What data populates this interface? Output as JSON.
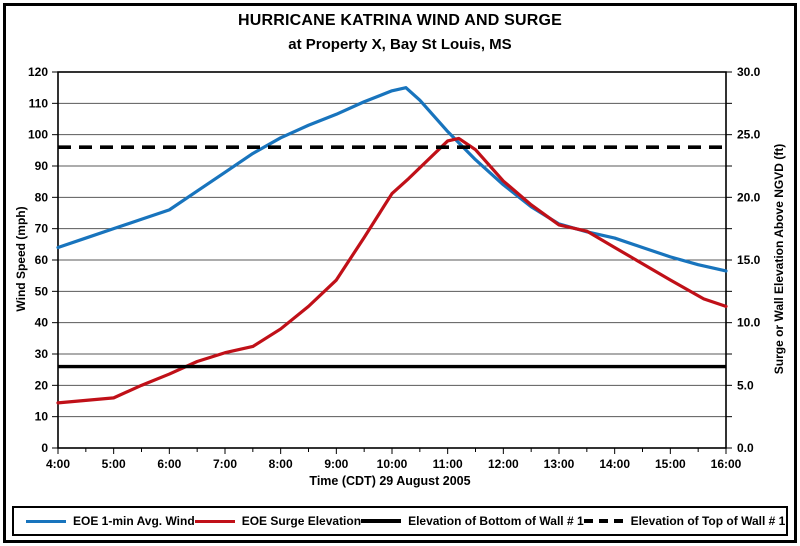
{
  "title": {
    "line1": "HURRICANE KATRINA WIND AND SURGE",
    "line2": "at Property X, Bay St Louis, MS"
  },
  "chart_data": {
    "type": "line",
    "title": "HURRICANE KATRINA WIND AND SURGE at Property X, Bay St Louis, MS",
    "x_axis": {
      "label": "Time (CDT) 29 August 2005",
      "range_hours": [
        4,
        16
      ],
      "tick_labels": [
        "4:00",
        "5:00",
        "6:00",
        "7:00",
        "8:00",
        "9:00",
        "10:00",
        "11:00",
        "12:00",
        "13:00",
        "14:00",
        "15:00",
        "16:00"
      ],
      "minor_tick_interval_hours": 0.5
    },
    "y_axis_left": {
      "label": "Wind Speed (mph)",
      "range": [
        0,
        120
      ],
      "tick_interval": 10,
      "tick_labels": [
        "0",
        "10",
        "20",
        "30",
        "40",
        "50",
        "60",
        "70",
        "80",
        "90",
        "100",
        "110",
        "120"
      ]
    },
    "y_axis_right": {
      "label": "Surge or Wall Elevation Above NGVD (ft)",
      "range": [
        0,
        30
      ],
      "tick_interval": 2.5,
      "label_interval": 5,
      "tick_labels": [
        "0.0",
        "5.0",
        "10.0",
        "15.0",
        "20.0",
        "25.0",
        "30.0"
      ]
    },
    "grid": "horizontal",
    "legend_position": "bottom",
    "series": [
      {
        "name": "EOE 1-min Avg. Wind",
        "axis": "left",
        "color": "#1874BD",
        "style": "solid",
        "points": [
          [
            4,
            64
          ],
          [
            4.5,
            67
          ],
          [
            5,
            70
          ],
          [
            5.5,
            73
          ],
          [
            6,
            76
          ],
          [
            6.5,
            82
          ],
          [
            7,
            88
          ],
          [
            7.5,
            94
          ],
          [
            8,
            99
          ],
          [
            8.5,
            103
          ],
          [
            9,
            106.5
          ],
          [
            9.5,
            110.5
          ],
          [
            10,
            114
          ],
          [
            10.25,
            115
          ],
          [
            10.5,
            111
          ],
          [
            11,
            101
          ],
          [
            11.5,
            92
          ],
          [
            12,
            84
          ],
          [
            12.5,
            77
          ],
          [
            13,
            71.5
          ],
          [
            13.5,
            69
          ],
          [
            14,
            67
          ],
          [
            14.5,
            64
          ],
          [
            15,
            61
          ],
          [
            15.5,
            58.5
          ],
          [
            16,
            56.5
          ]
        ]
      },
      {
        "name": "EOE Surge Elevation",
        "axis": "right",
        "color": "#C01018",
        "style": "solid",
        "points": [
          [
            4,
            3.6
          ],
          [
            4.5,
            3.8
          ],
          [
            5,
            4.0
          ],
          [
            5.5,
            5.0
          ],
          [
            6,
            5.9
          ],
          [
            6.5,
            6.9
          ],
          [
            7,
            7.6
          ],
          [
            7.5,
            8.1
          ],
          [
            8,
            9.5
          ],
          [
            8.5,
            11.3
          ],
          [
            9,
            13.4
          ],
          [
            9.5,
            16.8
          ],
          [
            10,
            20.3
          ],
          [
            10.3,
            21.5
          ],
          [
            11,
            24.5
          ],
          [
            11.2,
            24.7
          ],
          [
            11.5,
            23.8
          ],
          [
            12,
            21.3
          ],
          [
            12.5,
            19.4
          ],
          [
            13,
            17.8
          ],
          [
            13.5,
            17.3
          ],
          [
            14,
            16.0
          ],
          [
            14.5,
            14.7
          ],
          [
            15,
            13.4
          ],
          [
            15.6,
            11.9
          ],
          [
            16,
            11.3
          ]
        ]
      },
      {
        "name": "Elevation of Bottom of Wall # 1",
        "axis": "right",
        "color": "#000000",
        "style": "solid-thick",
        "constant": 6.5
      },
      {
        "name": "Elevation of Top of Wall # 1",
        "axis": "right",
        "color": "#000000",
        "style": "dashed-thick",
        "constant": 24.0
      }
    ]
  }
}
